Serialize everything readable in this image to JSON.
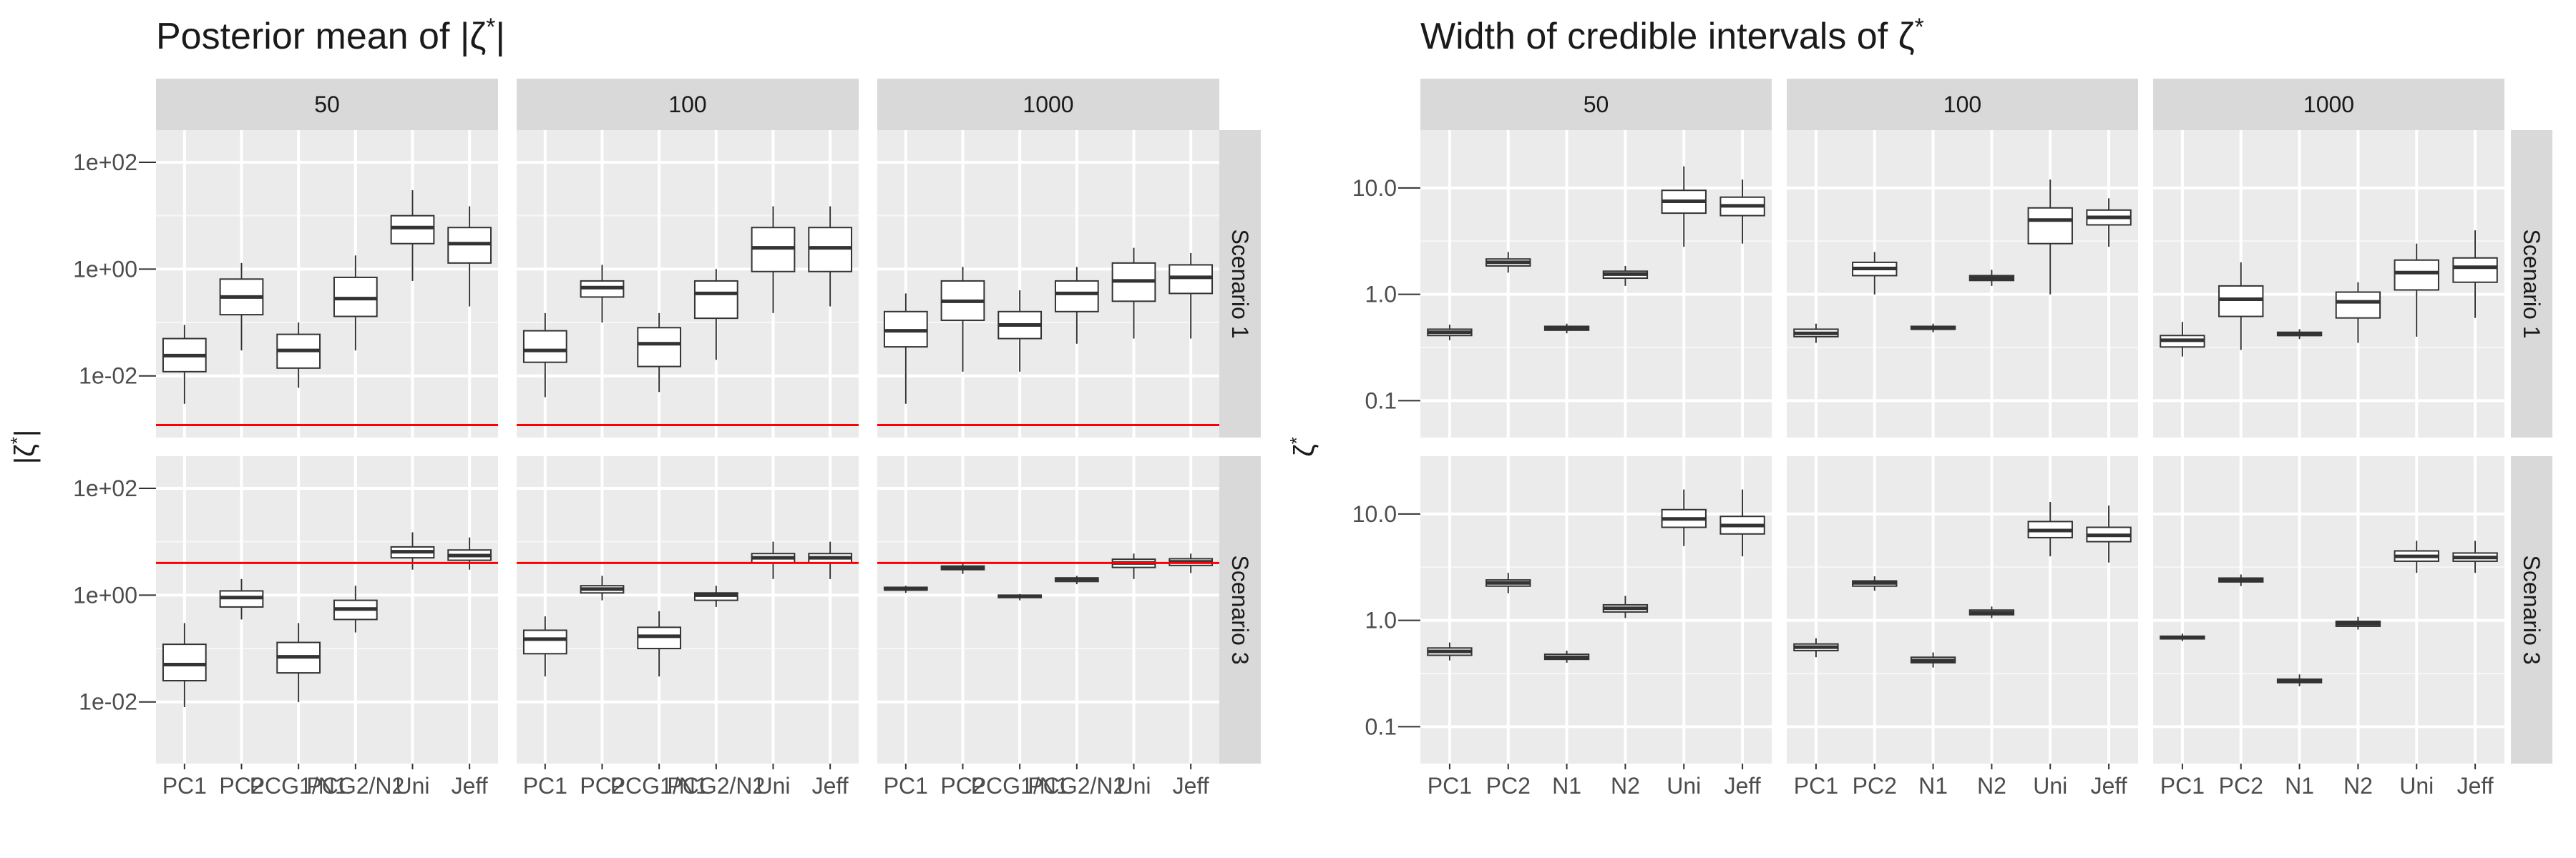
{
  "chart_data": [
    {
      "type": "boxplot",
      "title": "Posterior mean of |ζ*|",
      "ylabel": "|ζ*|",
      "xlabel": "",
      "y_scale": "log10",
      "ylim": [
        0.0007,
        400
      ],
      "y_ticks": [
        0.01,
        1,
        100
      ],
      "y_tick_labels": [
        "1e-02",
        "1e+00",
        "1e+02"
      ],
      "grid": true,
      "column_facets": [
        "50",
        "100",
        "1000"
      ],
      "row_facets": [
        "Scenario 1",
        "Scenario 3"
      ],
      "categories": [
        "PC1",
        "PC2",
        "PCG1/N1",
        "PCG2/N2",
        "Uni",
        "Jeff"
      ],
      "tick_labels": [
        "PC1",
        "PC2",
        "PCG1/N1",
        "PCG2/N2",
        "Uni",
        "Jeff"
      ],
      "reference_line_color": "#ff0000",
      "reference_lines": [
        [
          0.0012,
          0.0012,
          0.0012
        ],
        [
          4,
          4,
          4
        ]
      ],
      "boxes": [
        [
          [
            [
              0.003,
              0.012,
              0.024,
              0.05,
              0.09
            ],
            [
              0.03,
              0.14,
              0.3,
              0.65,
              1.3
            ],
            [
              0.006,
              0.014,
              0.03,
              0.06,
              0.1
            ],
            [
              0.03,
              0.13,
              0.28,
              0.7,
              1.8
            ],
            [
              0.6,
              3,
              6,
              10,
              30
            ],
            [
              0.2,
              1.3,
              3,
              6,
              15
            ]
          ],
          [
            [
              0.004,
              0.018,
              0.03,
              0.07,
              0.15
            ],
            [
              0.1,
              0.3,
              0.45,
              0.6,
              1.2
            ],
            [
              0.005,
              0.015,
              0.04,
              0.08,
              0.15
            ],
            [
              0.02,
              0.12,
              0.35,
              0.6,
              1.0
            ],
            [
              0.15,
              0.9,
              2.5,
              6,
              15
            ],
            [
              0.2,
              0.9,
              2.5,
              6,
              15
            ]
          ],
          [
            [
              0.003,
              0.035,
              0.07,
              0.16,
              0.35
            ],
            [
              0.012,
              0.11,
              0.25,
              0.6,
              1.1
            ],
            [
              0.012,
              0.05,
              0.09,
              0.16,
              0.4
            ],
            [
              0.04,
              0.16,
              0.35,
              0.6,
              1.1
            ],
            [
              0.05,
              0.25,
              0.6,
              1.3,
              2.5
            ],
            [
              0.05,
              0.35,
              0.7,
              1.2,
              2
            ]
          ]
        ],
        [
          [
            [
              0.008,
              0.025,
              0.05,
              0.12,
              0.3
            ],
            [
              0.35,
              0.6,
              0.9,
              1.2,
              2.0
            ],
            [
              0.01,
              0.035,
              0.07,
              0.13,
              0.3
            ],
            [
              0.2,
              0.35,
              0.55,
              0.8,
              1.5
            ],
            [
              3,
              5,
              6.5,
              8,
              15
            ],
            [
              3,
              4.5,
              5.5,
              7,
              12
            ]
          ],
          [
            [
              0.03,
              0.08,
              0.15,
              0.22,
              0.4
            ],
            [
              0.8,
              1.1,
              1.3,
              1.5,
              2.3
            ],
            [
              0.03,
              0.1,
              0.17,
              0.25,
              0.5
            ],
            [
              0.6,
              0.8,
              1.0,
              1.1,
              1.5
            ],
            [
              2,
              4,
              5,
              6,
              10
            ],
            [
              2,
              4,
              5,
              6,
              10
            ]
          ],
          [
            [
              1.1,
              1.25,
              1.3,
              1.4,
              1.5
            ],
            [
              2.5,
              3,
              3.3,
              3.5,
              4
            ],
            [
              0.8,
              0.9,
              0.95,
              1.0,
              1.05
            ],
            [
              1.6,
              1.8,
              2,
              2.1,
              2.3
            ],
            [
              2,
              3.3,
              4,
              4.7,
              6
            ],
            [
              2.6,
              3.6,
              4.2,
              4.8,
              6
            ]
          ]
        ]
      ]
    },
    {
      "type": "boxplot",
      "title": "Width of credible intervals of ζ*",
      "ylabel": "ζ*",
      "xlabel": "",
      "y_scale": "log10",
      "ylim": [
        0.045,
        35
      ],
      "y_ticks": [
        0.1,
        1,
        10
      ],
      "y_tick_labels": [
        "0.1",
        "1.0",
        "10.0"
      ],
      "grid": true,
      "column_facets": [
        "50",
        "100",
        "1000"
      ],
      "row_facets": [
        "Scenario 1",
        "Scenario 3"
      ],
      "categories": [
        "PC1",
        "PC2",
        "N1",
        "N2",
        "Uni",
        "Jeff"
      ],
      "tick_labels": [
        "PC1",
        "PC2",
        "N1",
        "N2",
        "Uni",
        "Jeff"
      ],
      "reference_line_color": "#ff0000",
      "reference_lines": [],
      "boxes": [
        [
          [
            [
              0.37,
              0.41,
              0.44,
              0.47,
              0.52
            ],
            [
              1.6,
              1.85,
              2.0,
              2.15,
              2.5
            ],
            [
              0.43,
              0.46,
              0.48,
              0.5,
              0.53
            ],
            [
              1.2,
              1.42,
              1.55,
              1.65,
              1.85
            ],
            [
              2.8,
              5.8,
              7.5,
              9.5,
              16
            ],
            [
              3,
              5.5,
              6.8,
              8.2,
              12
            ]
          ],
          [
            [
              0.35,
              0.4,
              0.43,
              0.47,
              0.53
            ],
            [
              1.0,
              1.5,
              1.75,
              2.0,
              2.5
            ],
            [
              0.44,
              0.47,
              0.48,
              0.5,
              0.53
            ],
            [
              1.2,
              1.35,
              1.42,
              1.5,
              1.7
            ],
            [
              1,
              3,
              5,
              6.5,
              12
            ],
            [
              2.8,
              4.5,
              5.3,
              6.2,
              8
            ]
          ],
          [
            [
              0.26,
              0.32,
              0.37,
              0.41,
              0.55
            ],
            [
              0.3,
              0.62,
              0.9,
              1.2,
              2
            ],
            [
              0.38,
              0.41,
              0.42,
              0.44,
              0.47
            ],
            [
              0.35,
              0.6,
              0.85,
              1.05,
              1.3
            ],
            [
              0.4,
              1.1,
              1.6,
              2.1,
              3
            ],
            [
              0.6,
              1.3,
              1.8,
              2.2,
              4
            ]
          ]
        ],
        [
          [
            [
              0.42,
              0.47,
              0.51,
              0.55,
              0.62
            ],
            [
              1.8,
              2.1,
              2.25,
              2.4,
              2.8
            ],
            [
              0.4,
              0.43,
              0.45,
              0.48,
              0.52
            ],
            [
              1.05,
              1.2,
              1.3,
              1.4,
              1.7
            ],
            [
              5,
              7.5,
              9,
              11,
              17
            ],
            [
              4,
              6.5,
              7.8,
              9.5,
              17
            ]
          ],
          [
            [
              0.45,
              0.52,
              0.56,
              0.6,
              0.68
            ],
            [
              1.9,
              2.1,
              2.25,
              2.35,
              2.6
            ],
            [
              0.36,
              0.4,
              0.42,
              0.45,
              0.5
            ],
            [
              1.05,
              1.13,
              1.18,
              1.25,
              1.35
            ],
            [
              4,
              6,
              7,
              8.5,
              13
            ],
            [
              3.5,
              5.5,
              6.3,
              7.5,
              12
            ]
          ],
          [
            [
              0.64,
              0.67,
              0.69,
              0.71,
              0.75
            ],
            [
              2.1,
              2.3,
              2.4,
              2.5,
              2.7
            ],
            [
              0.24,
              0.26,
              0.27,
              0.28,
              0.31
            ],
            [
              0.82,
              0.88,
              0.93,
              0.98,
              1.08
            ],
            [
              2.8,
              3.6,
              4.0,
              4.5,
              5.6
            ],
            [
              2.8,
              3.6,
              3.9,
              4.3,
              5.6
            ]
          ]
        ]
      ]
    }
  ]
}
